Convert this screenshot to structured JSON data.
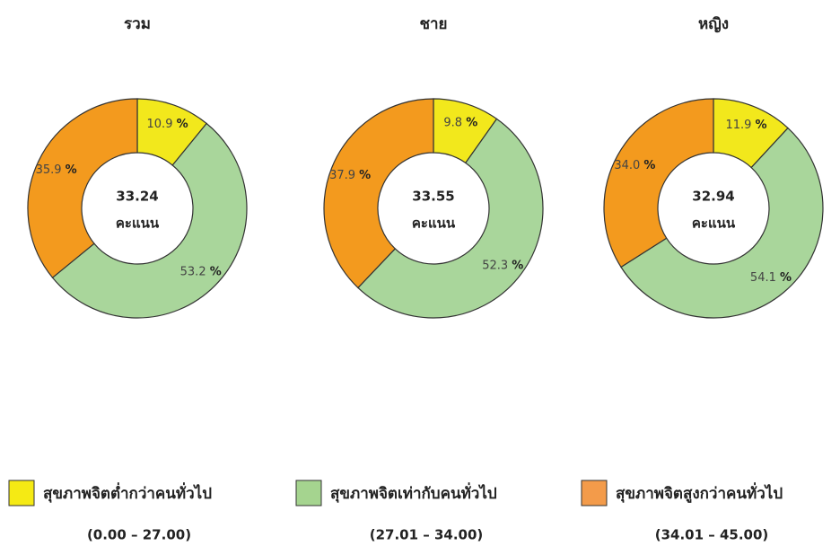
{
  "chart_data": [
    {
      "type": "pie",
      "title": "รวม",
      "values": [
        10.9,
        53.2,
        35.9
      ],
      "value_labels": [
        "10.9 %",
        "53.2 %",
        "35.9 %"
      ],
      "colors": [
        "#f2e81c",
        "#a9d69b",
        "#f39a1e"
      ],
      "center_value": 33.24,
      "center_label": "คะแนน"
    },
    {
      "type": "pie",
      "title": "ชาย",
      "values": [
        9.8,
        52.3,
        37.9
      ],
      "value_labels": [
        "9.8 %",
        "52.3 %",
        "37.9 %"
      ],
      "colors": [
        "#f2e81c",
        "#a9d69b",
        "#f39a1e"
      ],
      "center_value": 33.55,
      "center_label": "คะแนน"
    },
    {
      "type": "pie",
      "title": "หญิง",
      "values": [
        11.9,
        54.1,
        34.0
      ],
      "value_labels": [
        "11.9 %",
        "54.1 %",
        "34.0 %"
      ],
      "colors": [
        "#f2e81c",
        "#a9d69b",
        "#f39a1e"
      ],
      "center_value": 32.94,
      "center_label": "คะแนน"
    }
  ],
  "legend": [
    {
      "name": "สุขภาพจิตต่ำกว่าคนทั่วไป",
      "range": "(0.00 – 27.00)",
      "color": "#f5ea14"
    },
    {
      "name": "สุขภาพจิตเท่ากับคนทั่วไป",
      "range": "(27.01 – 34.00)",
      "color": "#a5d48f"
    },
    {
      "name": "สุขภาพจิตสูงกว่าคนทั่วไป",
      "range": "(34.01 – 45.00)",
      "color": "#f39b4a"
    }
  ]
}
